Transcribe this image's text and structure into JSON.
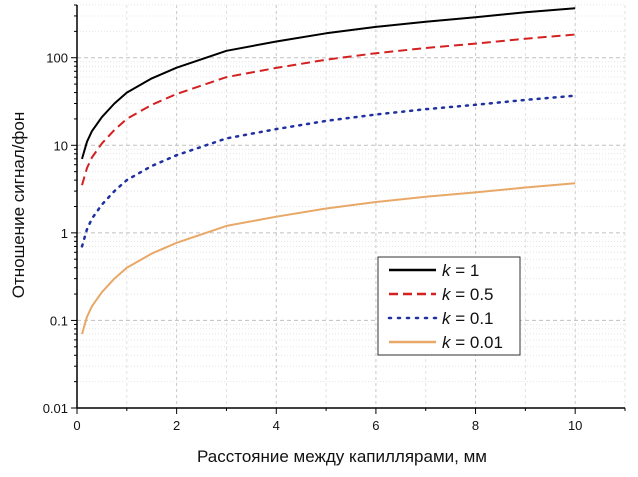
{
  "chart_data": {
    "type": "line",
    "xlabel": "Расстояние между капиллярами, мм",
    "ylabel": "Отношение сигнал/фон",
    "xlim": [
      0,
      11
    ],
    "ylim": [
      0.01,
      400
    ],
    "yscale": "log",
    "grid": true,
    "legend_placement": "center-right",
    "xticks": [
      "0",
      "2",
      "4",
      "6",
      "8",
      "10"
    ],
    "yticks": [
      "0.01",
      "0.1",
      "1",
      "10",
      "100"
    ],
    "x": [
      0.1,
      0.2,
      0.3,
      0.5,
      0.75,
      1,
      1.5,
      2,
      3,
      4,
      5,
      6,
      7,
      8,
      9,
      10
    ],
    "series": [
      {
        "name": "k = 1",
        "k": "1",
        "color": "#000000",
        "style": "solid",
        "values": [
          7,
          11,
          14.5,
          21,
          30,
          40,
          58,
          77,
          120,
          153,
          190,
          225,
          258,
          290,
          330,
          368
        ]
      },
      {
        "name": "k = 0.5",
        "k": "0.5",
        "color": "#d42020",
        "style": "dashed",
        "values": [
          3.5,
          5.5,
          7.25,
          10.5,
          15,
          20,
          29,
          38.5,
          60,
          76.5,
          95,
          112.5,
          129,
          145,
          165,
          184
        ]
      },
      {
        "name": "k = 0.1",
        "k": "0.1",
        "color": "#2030a0",
        "style": "dotted",
        "values": [
          0.7,
          1.1,
          1.45,
          2.1,
          3,
          4,
          5.8,
          7.7,
          12,
          15.3,
          19,
          22.5,
          25.8,
          29,
          33,
          36.8
        ]
      },
      {
        "name": "k = 0.01",
        "k": "0.01",
        "color": "#e8a868",
        "style": "solid",
        "values": [
          0.07,
          0.11,
          0.145,
          0.21,
          0.3,
          0.4,
          0.58,
          0.77,
          1.2,
          1.53,
          1.9,
          2.25,
          2.58,
          2.9,
          3.3,
          3.68
        ]
      }
    ]
  }
}
